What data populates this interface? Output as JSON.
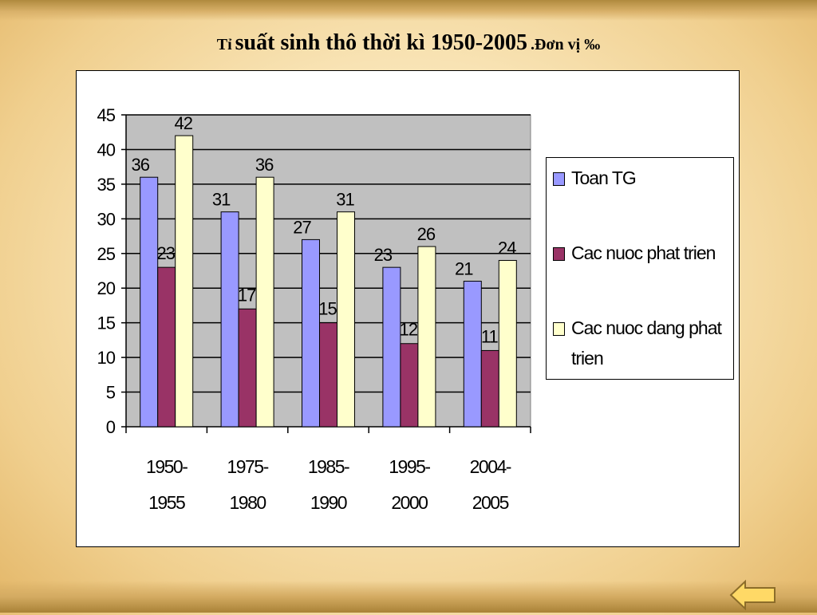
{
  "title": {
    "prefix": "Tỉ",
    "main": "suất sinh thô thời kì 1950-2005",
    "unit": ".Đơn vị ‰"
  },
  "chart_data": {
    "type": "bar",
    "categories": [
      [
        "1950-",
        "1955"
      ],
      [
        "1975-",
        "1980"
      ],
      [
        "1985-",
        "1990"
      ],
      [
        "1995-",
        "2000"
      ],
      [
        "2004-",
        "2005"
      ]
    ],
    "series": [
      {
        "name": "Toan TG",
        "values": [
          36,
          31,
          27,
          23,
          21
        ],
        "color": "#9999ff"
      },
      {
        "name": "Cac nuoc phat trien",
        "values": [
          23,
          17,
          15,
          12,
          11
        ],
        "color": "#993366"
      },
      {
        "name": "Cac nuoc dang phat trien",
        "values": [
          42,
          36,
          31,
          26,
          24
        ],
        "color": "#ffffcc"
      }
    ],
    "ylim": [
      0,
      45
    ],
    "yticks": [
      0,
      5,
      10,
      15,
      20,
      25,
      30,
      35,
      40,
      45
    ],
    "grid": true,
    "plot_background": "#c0c0c0",
    "legend_position": "right"
  },
  "legend": {
    "items": [
      {
        "label": "Toan TG",
        "color": "#9999ff"
      },
      {
        "label": "Cac nuoc phat trien",
        "color": "#993366"
      },
      {
        "label": "Cac nuoc dang phat trien",
        "color": "#ffffcc"
      }
    ]
  },
  "nav": {
    "back_icon": "left-arrow-icon",
    "back_color": "#ffd966"
  }
}
